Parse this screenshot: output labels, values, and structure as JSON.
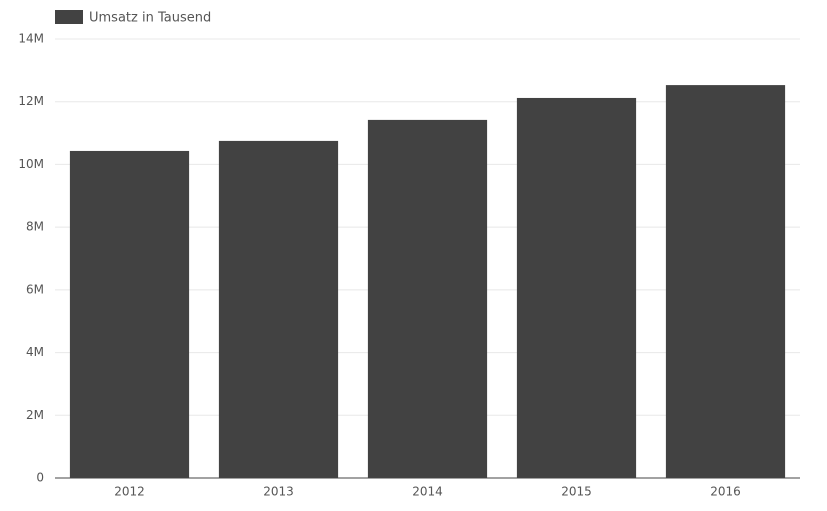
{
  "chart_data": {
    "type": "bar",
    "legend": "Umsatz in Tausend",
    "legend_position": "top-left",
    "categories": [
      "2012",
      "2013",
      "2014",
      "2015",
      "2016"
    ],
    "values": [
      10430000,
      10750000,
      11420000,
      12120000,
      12530000
    ],
    "color": "#424242",
    "ylim": [
      0,
      14000000
    ],
    "yticks": [
      0,
      {
        "value": 2000000,
        "label": "2M"
      },
      {
        "value": 4000000,
        "label": "4M"
      },
      {
        "value": 6000000,
        "label": "6M"
      },
      {
        "value": 8000000,
        "label": "8M"
      },
      {
        "value": 10000000,
        "label": "10M"
      },
      {
        "value": 12000000,
        "label": "12M"
      },
      {
        "value": 14000000,
        "label": "14M"
      }
    ],
    "grid": true
  }
}
